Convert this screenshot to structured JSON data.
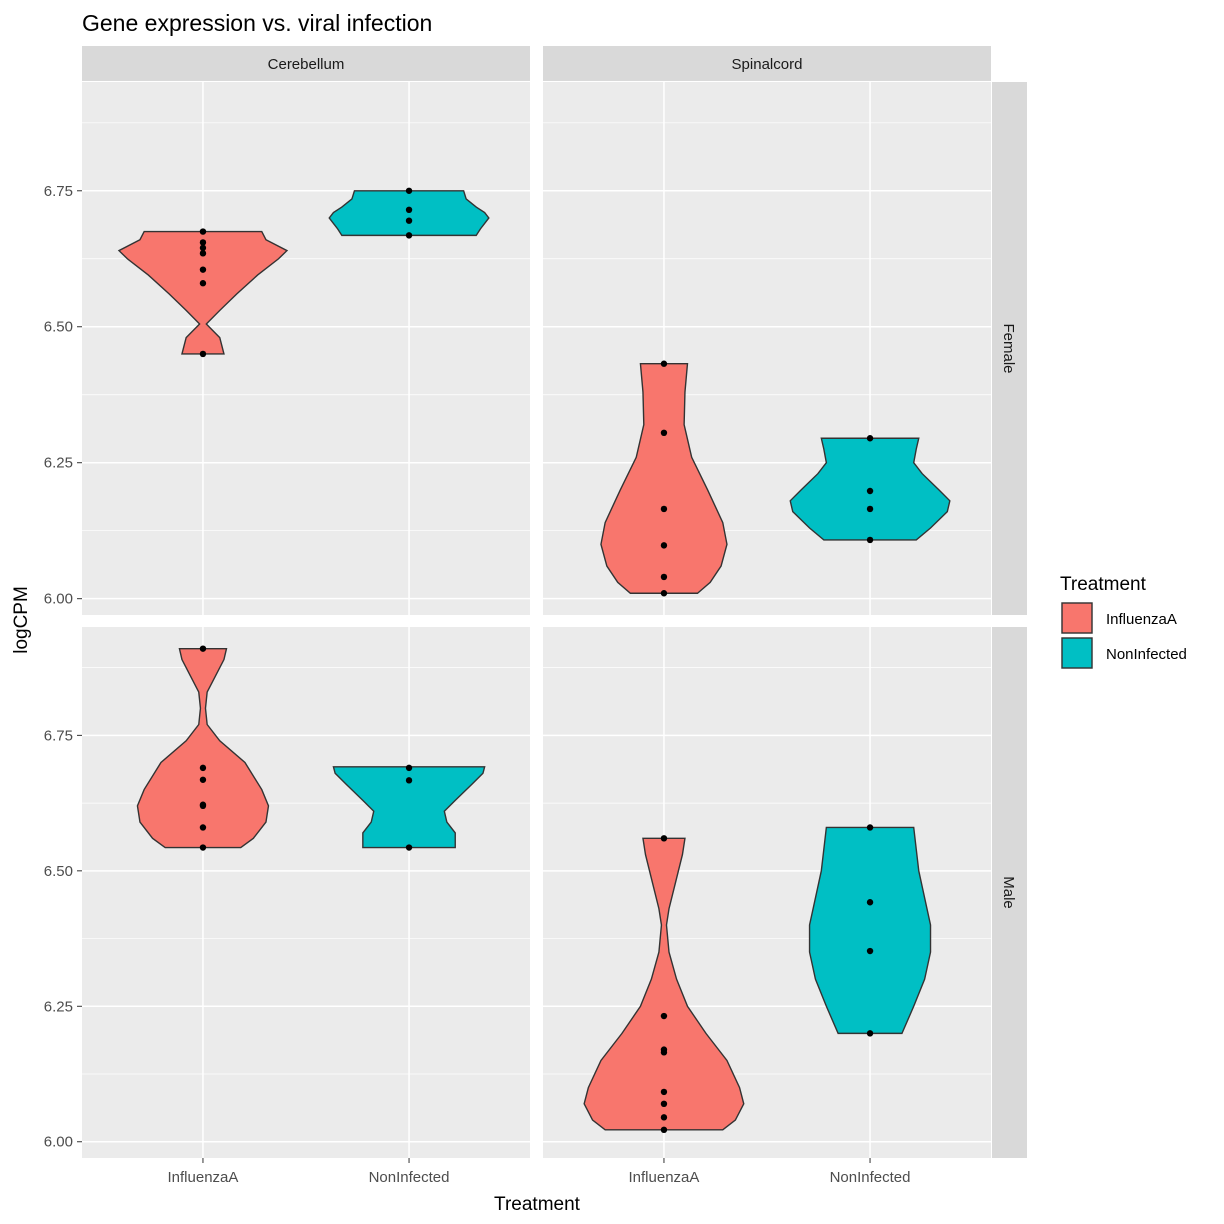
{
  "chart_data": {
    "type": "violin",
    "title": "Gene expression vs. viral infection",
    "xlabel": "Treatment",
    "ylabel": "logCPM",
    "categories": [
      "InfluenzaA",
      "NonInfected"
    ],
    "column_facets": [
      "Cerebellum",
      "Spinalcord"
    ],
    "row_facets": [
      "Female",
      "Male"
    ],
    "legend": {
      "title": "Treatment",
      "entries": [
        "InfluenzaA",
        "NonInfected"
      ],
      "position": "right"
    },
    "colors": {
      "InfluenzaA": "#F8766D",
      "NonInfected": "#00BFC4"
    },
    "rows": [
      {
        "facet": "Female",
        "ylim": [
          5.97,
          6.95
        ],
        "yticks": [
          6.0,
          6.25,
          6.5,
          6.75
        ],
        "ytick_labels": [
          "6.00",
          "6.25",
          "6.50",
          "6.75"
        ]
      },
      {
        "facet": "Male",
        "ylim": [
          5.97,
          6.95
        ],
        "yticks": [
          6.0,
          6.25,
          6.5,
          6.75
        ],
        "ytick_labels": [
          "6.00",
          "6.25",
          "6.50",
          "6.75"
        ]
      }
    ],
    "panels": [
      {
        "column": "Cerebellum",
        "row": "Female",
        "series": [
          {
            "name": "InfluenzaA",
            "points": [
              6.45,
              6.58,
              6.605,
              6.635,
              6.645,
              6.655,
              6.675
            ],
            "violin": [
              [
                6.45,
                0.25
              ],
              [
                6.48,
                0.2
              ],
              [
                6.505,
                0.04
              ],
              [
                6.53,
                0.2
              ],
              [
                6.56,
                0.4
              ],
              [
                6.595,
                0.65
              ],
              [
                6.625,
                0.9
              ],
              [
                6.64,
                1.0
              ],
              [
                6.66,
                0.75
              ],
              [
                6.675,
                0.7
              ]
            ]
          },
          {
            "name": "NonInfected",
            "points": [
              6.668,
              6.695,
              6.715,
              6.75
            ],
            "violin": [
              [
                6.668,
                0.8
              ],
              [
                6.68,
                0.85
              ],
              [
                6.69,
                0.9
              ],
              [
                6.7,
                0.95
              ],
              [
                6.71,
                0.9
              ],
              [
                6.72,
                0.8
              ],
              [
                6.735,
                0.68
              ],
              [
                6.75,
                0.65
              ]
            ]
          }
        ]
      },
      {
        "column": "Spinalcord",
        "row": "Female",
        "series": [
          {
            "name": "InfluenzaA",
            "points": [
              6.01,
              6.04,
              6.098,
              6.165,
              6.305,
              6.432
            ],
            "violin": [
              [
                6.01,
                0.4
              ],
              [
                6.03,
                0.55
              ],
              [
                6.06,
                0.68
              ],
              [
                6.1,
                0.75
              ],
              [
                6.14,
                0.7
              ],
              [
                6.2,
                0.52
              ],
              [
                6.26,
                0.33
              ],
              [
                6.32,
                0.24
              ],
              [
                6.38,
                0.25
              ],
              [
                6.432,
                0.28
              ]
            ]
          },
          {
            "name": "NonInfected",
            "points": [
              6.108,
              6.165,
              6.198,
              6.295
            ],
            "violin": [
              [
                6.108,
                0.55
              ],
              [
                6.13,
                0.72
              ],
              [
                6.16,
                0.92
              ],
              [
                6.18,
                0.95
              ],
              [
                6.2,
                0.82
              ],
              [
                6.23,
                0.62
              ],
              [
                6.25,
                0.52
              ],
              [
                6.275,
                0.55
              ],
              [
                6.295,
                0.58
              ]
            ]
          }
        ]
      },
      {
        "column": "Cerebellum",
        "row": "Male",
        "series": [
          {
            "name": "InfluenzaA",
            "points": [
              6.543,
              6.58,
              6.62,
              6.622,
              6.668,
              6.69,
              6.91
            ],
            "violin": [
              [
                6.543,
                0.45
              ],
              [
                6.56,
                0.6
              ],
              [
                6.59,
                0.75
              ],
              [
                6.62,
                0.78
              ],
              [
                6.65,
                0.7
              ],
              [
                6.7,
                0.5
              ],
              [
                6.74,
                0.2
              ],
              [
                6.77,
                0.05
              ],
              [
                6.8,
                0.03
              ],
              [
                6.83,
                0.05
              ],
              [
                6.86,
                0.15
              ],
              [
                6.89,
                0.25
              ],
              [
                6.91,
                0.28
              ]
            ]
          },
          {
            "name": "NonInfected",
            "points": [
              6.543,
              6.667,
              6.69
            ],
            "violin": [
              [
                6.543,
                0.55
              ],
              [
                6.57,
                0.55
              ],
              [
                6.59,
                0.45
              ],
              [
                6.61,
                0.42
              ],
              [
                6.63,
                0.55
              ],
              [
                6.66,
                0.75
              ],
              [
                6.68,
                0.88
              ],
              [
                6.692,
                0.9
              ]
            ]
          }
        ]
      },
      {
        "column": "Spinalcord",
        "row": "Male",
        "series": [
          {
            "name": "InfluenzaA",
            "points": [
              6.022,
              6.045,
              6.07,
              6.092,
              6.165,
              6.17,
              6.232,
              6.56
            ],
            "violin": [
              [
                6.022,
                0.7
              ],
              [
                6.04,
                0.85
              ],
              [
                6.07,
                0.95
              ],
              [
                6.1,
                0.9
              ],
              [
                6.15,
                0.75
              ],
              [
                6.2,
                0.5
              ],
              [
                6.25,
                0.28
              ],
              [
                6.3,
                0.15
              ],
              [
                6.35,
                0.06
              ],
              [
                6.4,
                0.03
              ],
              [
                6.43,
                0.06
              ],
              [
                6.48,
                0.14
              ],
              [
                6.53,
                0.22
              ],
              [
                6.56,
                0.25
              ]
            ]
          },
          {
            "name": "NonInfected",
            "points": [
              6.2,
              6.352,
              6.442,
              6.58
            ],
            "violin": [
              [
                6.2,
                0.38
              ],
              [
                6.25,
                0.52
              ],
              [
                6.3,
                0.65
              ],
              [
                6.35,
                0.72
              ],
              [
                6.4,
                0.72
              ],
              [
                6.45,
                0.65
              ],
              [
                6.5,
                0.58
              ],
              [
                6.54,
                0.55
              ],
              [
                6.58,
                0.52
              ]
            ]
          }
        ]
      }
    ]
  }
}
